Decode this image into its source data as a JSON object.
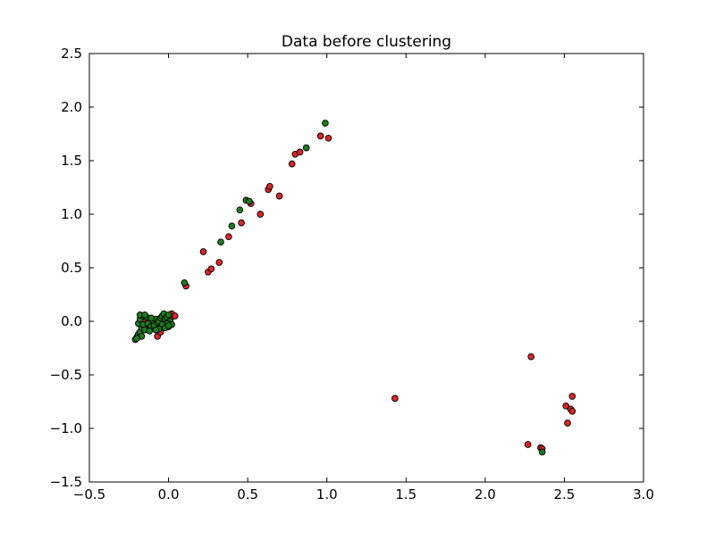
{
  "chart_data": {
    "type": "scatter",
    "title": "Data before clustering",
    "xlabel": "",
    "ylabel": "",
    "xlim": [
      -0.5,
      3.0
    ],
    "ylim": [
      -1.5,
      2.5
    ],
    "x_ticks": [
      -0.5,
      0.0,
      0.5,
      1.0,
      1.5,
      2.0,
      2.5,
      3.0
    ],
    "x_tick_labels": [
      "−0.5",
      "0.0",
      "0.5",
      "1.0",
      "1.5",
      "2.0",
      "2.5",
      "3.0"
    ],
    "y_ticks": [
      -1.5,
      -1.0,
      -0.5,
      0.0,
      0.5,
      1.0,
      1.5,
      2.0,
      2.5
    ],
    "y_tick_labels": [
      "−1.5",
      "−1.0",
      "−0.5",
      "0.0",
      "0.5",
      "1.0",
      "1.5",
      "2.0",
      "2.5"
    ],
    "grid": false,
    "legend": "none",
    "series": [
      {
        "color": "#d62728",
        "points": [
          [
            0.22,
            0.65
          ],
          [
            0.25,
            0.46
          ],
          [
            0.27,
            0.49
          ],
          [
            0.32,
            0.55
          ],
          [
            0.38,
            0.79
          ],
          [
            0.46,
            0.92
          ],
          [
            0.52,
            1.1
          ],
          [
            0.58,
            1.0
          ],
          [
            0.63,
            1.23
          ],
          [
            0.64,
            1.26
          ],
          [
            0.7,
            1.17
          ],
          [
            0.78,
            1.47
          ],
          [
            0.8,
            1.56
          ],
          [
            0.83,
            1.58
          ],
          [
            0.96,
            1.73
          ],
          [
            1.01,
            1.71
          ],
          [
            0.11,
            0.33
          ],
          [
            -0.07,
            -0.14
          ],
          [
            -0.03,
            0.06
          ],
          [
            0.02,
            0.07
          ],
          [
            0.04,
            0.05
          ],
          [
            -0.12,
            -0.04
          ],
          [
            -0.05,
            -0.1
          ],
          [
            0.0,
            -0.05
          ],
          [
            -0.15,
            0.02
          ],
          [
            -0.09,
            0.0
          ],
          [
            0.01,
            0.02
          ],
          [
            -0.17,
            -0.08
          ],
          [
            1.43,
            -0.72
          ],
          [
            2.29,
            -0.33
          ],
          [
            2.27,
            -1.15
          ],
          [
            2.35,
            -1.18
          ],
          [
            2.36,
            -1.19
          ],
          [
            2.51,
            -0.79
          ],
          [
            2.52,
            -0.95
          ],
          [
            2.54,
            -0.82
          ],
          [
            2.55,
            -0.7
          ],
          [
            2.55,
            -0.84
          ]
        ]
      },
      {
        "color": "#1f7a1f",
        "points": [
          [
            0.1,
            0.36
          ],
          [
            0.33,
            0.74
          ],
          [
            0.4,
            0.89
          ],
          [
            0.45,
            1.04
          ],
          [
            0.49,
            1.13
          ],
          [
            0.51,
            1.12
          ],
          [
            0.87,
            1.62
          ],
          [
            0.99,
            1.85
          ],
          [
            2.36,
            -1.22
          ],
          [
            -0.21,
            -0.17
          ],
          [
            -0.2,
            -0.15
          ],
          [
            -0.19,
            -0.12
          ],
          [
            -0.18,
            -0.1
          ],
          [
            -0.17,
            -0.06
          ],
          [
            -0.19,
            -0.02
          ],
          [
            -0.18,
            0.02
          ],
          [
            -0.16,
            0.05
          ],
          [
            -0.18,
            0.06
          ],
          [
            -0.16,
            -0.03
          ],
          [
            -0.15,
            -0.08
          ],
          [
            -0.14,
            0.04
          ],
          [
            -0.13,
            -0.02
          ],
          [
            -0.11,
            -0.05
          ],
          [
            -0.1,
            0.01
          ],
          [
            -0.09,
            -0.04
          ],
          [
            -0.08,
            0.02
          ],
          [
            -0.07,
            -0.01
          ],
          [
            -0.06,
            0.0
          ],
          [
            -0.05,
            0.03
          ],
          [
            -0.04,
            0.05
          ],
          [
            -0.03,
            0.07
          ],
          [
            -0.02,
            0.02
          ],
          [
            -0.01,
            0.04
          ],
          [
            0.0,
            0.06
          ],
          [
            0.01,
            0.0
          ],
          [
            0.02,
            -0.03
          ],
          [
            -0.01,
            -0.02
          ],
          [
            -0.04,
            -0.03
          ],
          [
            -0.06,
            -0.07
          ],
          [
            -0.17,
            -0.14
          ],
          [
            -0.12,
            -0.09
          ],
          [
            -0.08,
            -0.08
          ],
          [
            -0.02,
            -0.06
          ],
          [
            0.0,
            -0.04
          ],
          [
            -0.15,
            0.06
          ],
          [
            -0.11,
            0.03
          ],
          [
            -0.2,
            -0.16
          ]
        ]
      }
    ]
  }
}
